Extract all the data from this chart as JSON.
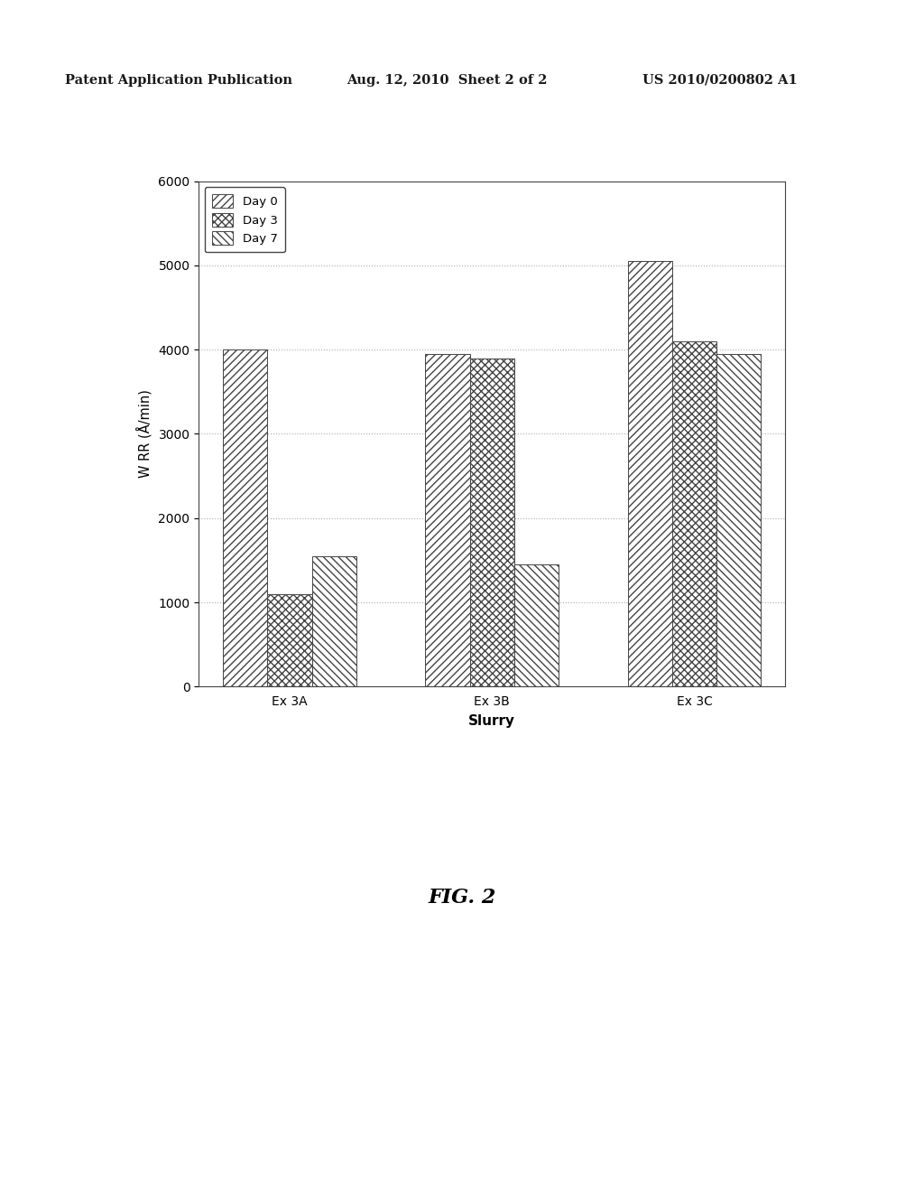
{
  "categories": [
    "Ex 3A",
    "Ex 3B",
    "Ex 3C"
  ],
  "series": {
    "Day 0": [
      4000,
      3950,
      5050
    ],
    "Day 3": [
      1100,
      3900,
      4100
    ],
    "Day 7": [
      1550,
      1450,
      3950
    ]
  },
  "series_order": [
    "Day 0",
    "Day 3",
    "Day 7"
  ],
  "hatch_patterns": [
    "////",
    "xxxx",
    "\\\\\\\\"
  ],
  "ylabel": "W RR (Å/min)",
  "xlabel": "Slurry",
  "ylim": [
    0,
    6000
  ],
  "yticks": [
    0,
    1000,
    2000,
    3000,
    4000,
    5000,
    6000
  ],
  "header_left": "Patent Application Publication",
  "header_mid": "Aug. 12, 2010  Sheet 2 of 2",
  "header_right": "US 2010/0200802 A1",
  "fig_label": "FIG. 2",
  "background_color": "#ffffff"
}
